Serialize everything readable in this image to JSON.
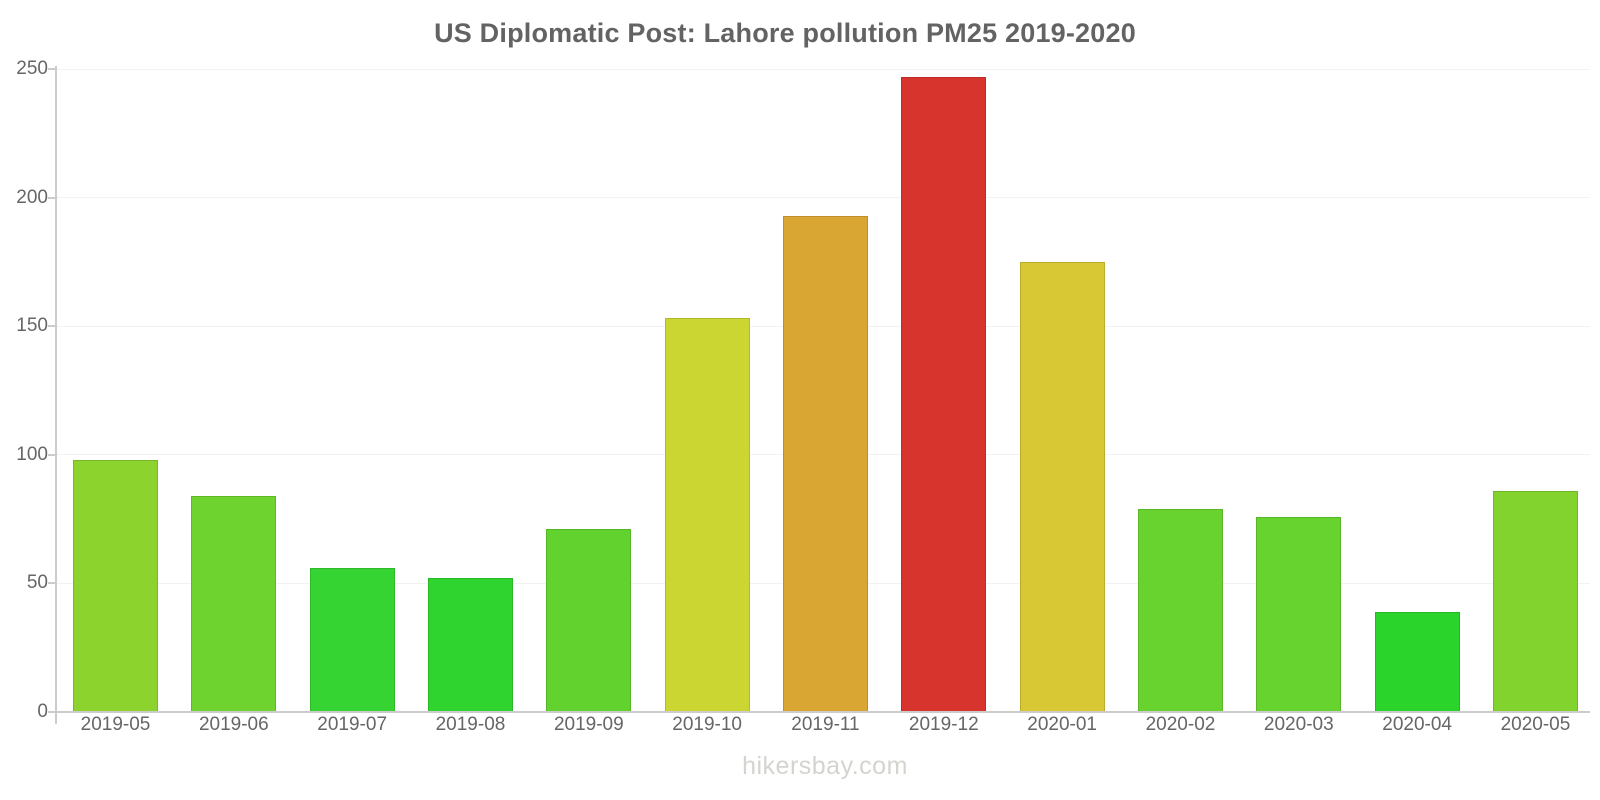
{
  "title": "US Diplomatic Post: Lahore pollution PM25 2019-2020",
  "watermark": "hikersbay.com",
  "colors": {
    "background": "#ffffff",
    "title_text": "#636363",
    "axis_text": "#666666",
    "axis_line": "#cccccc",
    "gridline": "#f2f2f2",
    "watermark_text": "#d4d4cf"
  },
  "chart_data": {
    "type": "bar",
    "title": "US Diplomatic Post: Lahore pollution PM25 2019-2020",
    "categories": [
      "2019-05",
      "2019-06",
      "2019-07",
      "2019-08",
      "2019-09",
      "2019-10",
      "2019-11",
      "2019-12",
      "2020-01",
      "2020-02",
      "2020-03",
      "2020-04",
      "2020-05"
    ],
    "values": [
      98,
      84,
      56,
      52,
      71,
      153,
      193,
      247,
      175,
      79,
      76,
      39,
      86
    ],
    "bar_colors": [
      "#8cd32e",
      "#6ed32e",
      "#36d432",
      "#2fd42f",
      "#62d32e",
      "#cbd633",
      "#d9a634",
      "#d8342e",
      "#d8c834",
      "#68d32e",
      "#66d32e",
      "#2bd42b",
      "#83d32e"
    ],
    "xlabel": "",
    "ylabel": "",
    "ylim": [
      0,
      250
    ],
    "yticks": [
      0,
      50,
      100,
      150,
      200,
      250
    ],
    "grid": true,
    "legend": false
  }
}
